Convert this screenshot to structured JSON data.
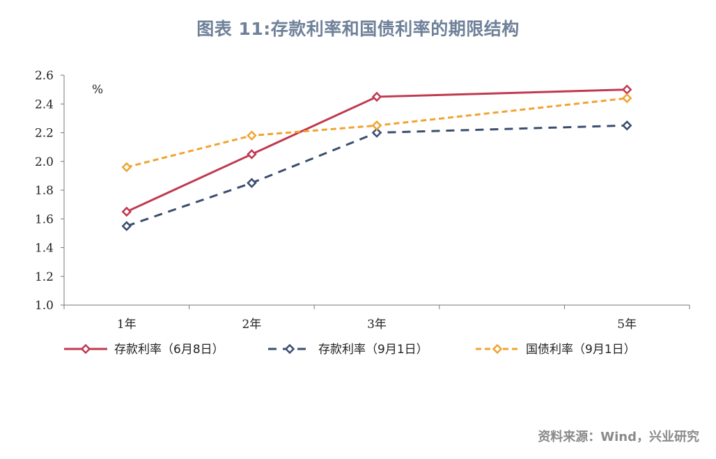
{
  "chart_data": {
    "type": "line",
    "title": "图表 11:存款利率和国债利率的期限结构",
    "ylabel": "%",
    "xlabel": "",
    "ylim": [
      1.0,
      2.6
    ],
    "yticks": [
      "1.0",
      "1.2",
      "1.4",
      "1.6",
      "1.8",
      "2.0",
      "2.2",
      "2.4",
      "2.6"
    ],
    "categories": [
      "1年",
      "2年",
      "3年",
      "5年"
    ],
    "x": [
      1,
      2,
      3,
      5
    ],
    "xlim": [
      0.5,
      5.5
    ],
    "grid": false,
    "legend_position": "bottom",
    "series": [
      {
        "name": "存款利率（6月8日）",
        "values": [
          1.65,
          2.05,
          2.45,
          2.5
        ],
        "color": "#c0394f",
        "dash": "solid"
      },
      {
        "name": "存款利率（9月1日）",
        "values": [
          1.55,
          1.85,
          2.2,
          2.25
        ],
        "color": "#3a4e6e",
        "dash": "dashed"
      },
      {
        "name": "国债利率（9月1日）",
        "values": [
          1.96,
          2.18,
          2.25,
          2.44
        ],
        "color": "#f0a330",
        "dash": "dotted"
      }
    ]
  },
  "source": "资料来源：Wind，兴业研究"
}
